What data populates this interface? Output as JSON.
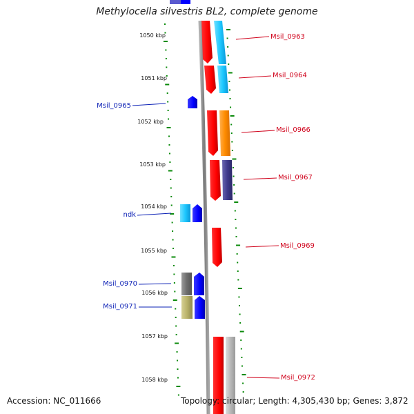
{
  "title": "Methylocella silvestris BL2, complete genome",
  "footer": {
    "accession": "Accession: NC_011666",
    "summary": "Topology: circular; Length: 4,305,430 bp; Genes: 3,872"
  },
  "ticks": [
    "1050 kbp",
    "1051 kbp",
    "1052 kbp",
    "1053 kbp",
    "1054 kbp",
    "1055 kbp",
    "1056 kbp",
    "1057 kbp",
    "1058 kbp"
  ],
  "genes_right": [
    {
      "label": "Msil_0963",
      "color": "#d0021b"
    },
    {
      "label": "Msil_0964",
      "color": "#d0021b"
    },
    {
      "label": "Msil_0966",
      "color": "#d0021b"
    },
    {
      "label": "Msil_0967",
      "color": "#d0021b"
    },
    {
      "label": "Msil_0969",
      "color": "#d0021b"
    },
    {
      "label": "Msil_0972",
      "color": "#d0021b"
    }
  ],
  "genes_left": [
    {
      "label": "Msil_0965",
      "color": "#0a1fb5"
    },
    {
      "label": "ndk",
      "color": "#0a1fb5"
    },
    {
      "label": "Msil_0970",
      "color": "#0a1fb5"
    },
    {
      "label": "Msil_0971",
      "color": "#0a1fb5"
    }
  ],
  "colors": {
    "forward_gene": "#ff0000",
    "reverse_gene": "#0000ff",
    "cyan_cog": "#1ec8ff",
    "orange_cog": "#ff8c00",
    "purple_cog": "#3f3a8c",
    "gray_cog": "#777777",
    "olive_cog": "#b9b26a",
    "lightgray_cog": "#b8b8b8",
    "backbone": "#8a8a8a",
    "tick": "#0a8a0a"
  }
}
